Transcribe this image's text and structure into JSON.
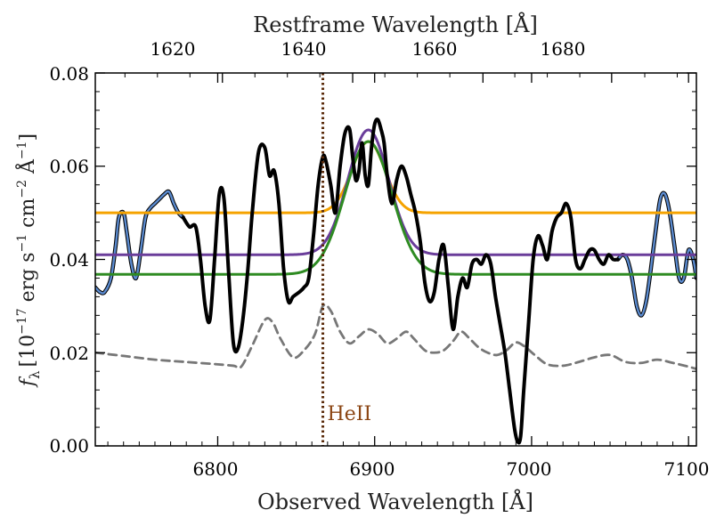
{
  "chart_data": {
    "type": "line",
    "title": "",
    "xlabel": "Observed Wavelength [Å]",
    "ylabel": "f_λ [10^-17 erg s^-1 cm^-2 Å^-1]",
    "ylabel_parts": {
      "fl": "f",
      "sub": "λ",
      "bracket_open": "[10",
      "exp1": "−17",
      "erg": " erg s",
      "exp2": "−1",
      "cm": " cm",
      "exp3": "−2",
      "ang": " Å",
      "exp4": "−1",
      "bracket_close": "]"
    },
    "top_xlabel": "Restframe Wavelength [Å]",
    "xlim": [
      6722,
      7105
    ],
    "ylim": [
      0.0,
      0.08
    ],
    "x_ticks": [
      6800,
      6900,
      7000,
      7100
    ],
    "x_tick_labels": [
      "6800",
      "6900",
      "7000",
      "7100"
    ],
    "y_ticks": [
      0.0,
      0.02,
      0.04,
      0.06,
      0.08
    ],
    "y_tick_labels": [
      "0.00",
      "0.02",
      "0.04",
      "0.06",
      "0.08"
    ],
    "top_ticks_obs": [
      6803,
      6886,
      6969,
      7051
    ],
    "top_tick_labels": [
      "1620",
      "1640",
      "1660",
      "1680"
    ],
    "annotation": {
      "label": "HeII",
      "x": 6867,
      "color": "#8B4513"
    },
    "series": [
      {
        "name": "spectrum (outside fit window)",
        "color": "#5B8BD0",
        "outline": "#000000",
        "x": [
          6722,
          6725,
          6728,
          6732,
          6735,
          6737,
          6740,
          6742,
          6745,
          6748,
          6751,
          6754,
          6757,
          6760,
          6763,
          6766,
          6769,
          6772,
          6775,
          6778
        ],
        "y": [
          0.034,
          0.033,
          0.033,
          0.036,
          0.043,
          0.049,
          0.05,
          0.046,
          0.039,
          0.036,
          0.042,
          0.049,
          0.051,
          0.052,
          0.053,
          0.054,
          0.0545,
          0.052,
          0.05,
          0.049
        ]
      },
      {
        "name": "spectrum (outside fit window, red)",
        "color": "#5B8BD0",
        "outline": "#000000",
        "x": [
          7055,
          7058,
          7061,
          7064,
          7067,
          7070,
          7073,
          7076,
          7079,
          7082,
          7085,
          7088,
          7091,
          7094,
          7097,
          7100,
          7103,
          7105
        ],
        "y": [
          0.04,
          0.041,
          0.04,
          0.036,
          0.03,
          0.028,
          0.031,
          0.038,
          0.046,
          0.053,
          0.054,
          0.05,
          0.043,
          0.036,
          0.036,
          0.042,
          0.04,
          0.036
        ]
      },
      {
        "name": "spectrum",
        "color": "#000000",
        "x": [
          6778,
          6782,
          6786,
          6789,
          6792,
          6795,
          6798,
          6801,
          6804,
          6807,
          6810,
          6813,
          6816,
          6819,
          6822,
          6826,
          6830,
          6833,
          6836,
          6839,
          6842,
          6845,
          6848,
          6852,
          6855,
          6858,
          6861,
          6864,
          6867,
          6869,
          6872,
          6875,
          6878,
          6881,
          6884,
          6886,
          6888,
          6890,
          6892,
          6894,
          6896,
          6898,
          6900,
          6902,
          6904,
          6906,
          6908,
          6911,
          6914,
          6917,
          6920,
          6923,
          6926,
          6929,
          6932,
          6935,
          6938,
          6941,
          6944,
          6947,
          6950,
          6953,
          6956,
          6959,
          6962,
          6965,
          6968,
          6971,
          6974,
          6977,
          6980,
          6983,
          6986,
          6989,
          6991,
          6993,
          6995,
          6998,
          7001,
          7004,
          7007,
          7010,
          7013,
          7016,
          7019,
          7022,
          7025,
          7028,
          7031,
          7034,
          7037,
          7040,
          7043,
          7046,
          7049,
          7052,
          7055
        ],
        "y": [
          0.049,
          0.047,
          0.047,
          0.04,
          0.03,
          0.027,
          0.04,
          0.054,
          0.053,
          0.037,
          0.022,
          0.021,
          0.027,
          0.037,
          0.05,
          0.063,
          0.064,
          0.058,
          0.059,
          0.052,
          0.038,
          0.031,
          0.032,
          0.033,
          0.034,
          0.036,
          0.045,
          0.056,
          0.062,
          0.061,
          0.056,
          0.05,
          0.06,
          0.067,
          0.068,
          0.062,
          0.057,
          0.059,
          0.065,
          0.058,
          0.056,
          0.064,
          0.069,
          0.07,
          0.068,
          0.065,
          0.058,
          0.052,
          0.057,
          0.06,
          0.058,
          0.054,
          0.05,
          0.044,
          0.035,
          0.031,
          0.033,
          0.04,
          0.043,
          0.034,
          0.025,
          0.032,
          0.036,
          0.034,
          0.039,
          0.04,
          0.039,
          0.041,
          0.039,
          0.032,
          0.026,
          0.02,
          0.012,
          0.004,
          0.001,
          0.002,
          0.012,
          0.026,
          0.04,
          0.045,
          0.043,
          0.04,
          0.046,
          0.049,
          0.05,
          0.052,
          0.049,
          0.04,
          0.038,
          0.04,
          0.042,
          0.042,
          0.04,
          0.039,
          0.041,
          0.04,
          0.04
        ]
      },
      {
        "name": "error spectrum",
        "color": "#777777",
        "dashed": true,
        "x": [
          6722,
          6740,
          6760,
          6780,
          6800,
          6810,
          6815,
          6822,
          6830,
          6835,
          6840,
          6848,
          6855,
          6862,
          6867,
          6872,
          6878,
          6884,
          6890,
          6896,
          6902,
          6908,
          6914,
          6920,
          6925,
          6932,
          6938,
          6944,
          6950,
          6955,
          6960,
          6966,
          6972,
          6978,
          6984,
          6990,
          6996,
          7002,
          7010,
          7020,
          7030,
          7040,
          7050,
          7060,
          7070,
          7080,
          7090,
          7100,
          7105
        ],
        "y": [
          0.02,
          0.0193,
          0.0185,
          0.018,
          0.0175,
          0.0172,
          0.017,
          0.0215,
          0.027,
          0.0265,
          0.023,
          0.019,
          0.0205,
          0.024,
          0.03,
          0.029,
          0.0245,
          0.022,
          0.0235,
          0.025,
          0.024,
          0.022,
          0.023,
          0.0245,
          0.023,
          0.0205,
          0.02,
          0.0205,
          0.0225,
          0.0245,
          0.0232,
          0.0212,
          0.02,
          0.0195,
          0.0205,
          0.0222,
          0.0212,
          0.0195,
          0.0175,
          0.0172,
          0.018,
          0.019,
          0.0195,
          0.018,
          0.0178,
          0.0185,
          0.0178,
          0.017,
          0.0165
        ]
      },
      {
        "name": "Gaussian fit (orange)",
        "color": "#F5A300",
        "gaussian": {
          "baseline": 0.05,
          "amplitude": 0.0153,
          "center": 6896,
          "sigma": 10.5
        }
      },
      {
        "name": "Gaussian fit (purple)",
        "color": "#6A3D9A",
        "gaussian": {
          "baseline": 0.041,
          "amplitude": 0.0268,
          "center": 6896,
          "sigma": 13
        }
      },
      {
        "name": "Gaussian fit (green)",
        "color": "#2E8B22",
        "gaussian": {
          "baseline": 0.0368,
          "amplitude": 0.0285,
          "center": 6896,
          "sigma": 15
        }
      }
    ]
  }
}
